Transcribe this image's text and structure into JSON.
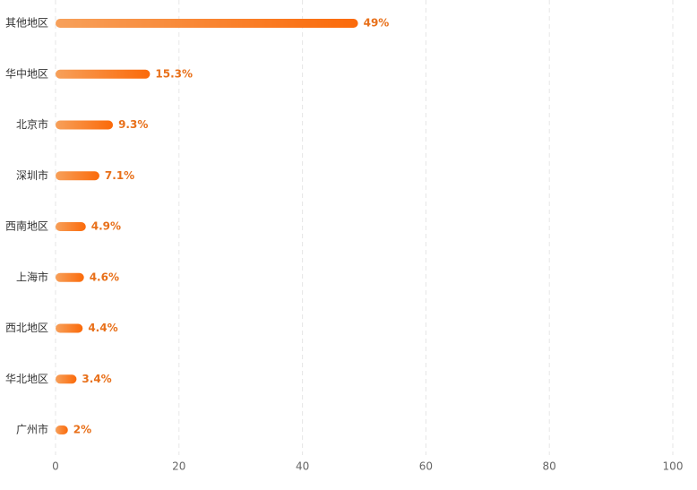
{
  "chart_data": {
    "type": "bar",
    "orientation": "horizontal",
    "categories": [
      "其他地区",
      "华中地区",
      "北京市",
      "深圳市",
      "西南地区",
      "上海市",
      "西北地区",
      "华北地区",
      "广州市"
    ],
    "values": [
      49,
      15.3,
      9.3,
      7.1,
      4.9,
      4.6,
      4.4,
      3.4,
      2
    ],
    "value_labels": [
      "49%",
      "15.3%",
      "9.3%",
      "7.1%",
      "4.9%",
      "4.6%",
      "4.4%",
      "3.4%",
      "2%"
    ],
    "color": [
      "#f7a05a",
      "#fb6a0a"
    ],
    "xlim": [
      0,
      100
    ],
    "xticks": [
      0,
      20,
      40,
      60,
      80,
      100
    ],
    "grid": true
  }
}
